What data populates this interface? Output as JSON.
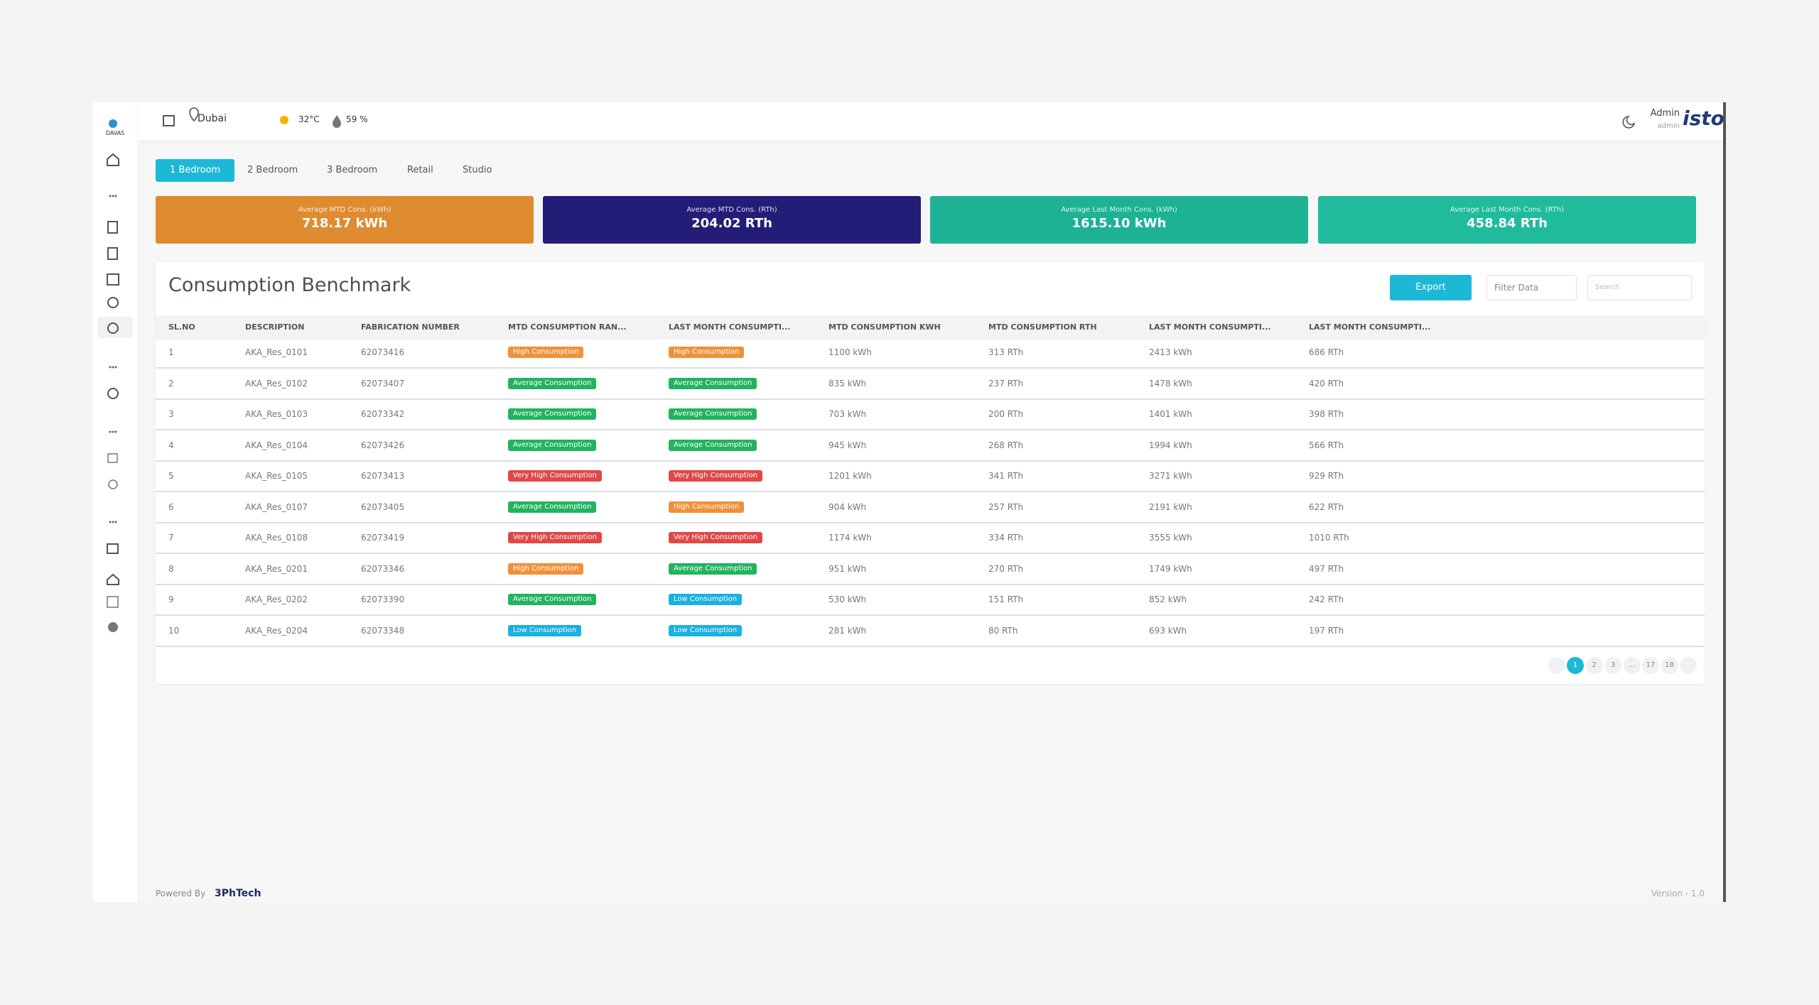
{
  "sidebar": {
    "logo_text": "DAVAS"
  },
  "header": {
    "location": "Dubai",
    "temperature": "32°C",
    "humidity": "59 %",
    "user_name": "Admin",
    "user_role": "admin",
    "brand": "isto"
  },
  "tabs": [
    "1 Bedroom",
    "2 Bedroom",
    "3 Bedroom",
    "Retail",
    "Studio"
  ],
  "cards": [
    {
      "label": "Average MTD Cons. (kWh)",
      "value": "718.17 kWh",
      "color": "#df8b2f"
    },
    {
      "label": "Average MTD Cons. (RTh)",
      "value": "204.02 RTh",
      "color": "#231d78"
    },
    {
      "label": "Average Last Month Cons. (kWh)",
      "value": "1615.10 kWh",
      "color": "#1db294"
    },
    {
      "label": "Average Last Month Cons. (RTh)",
      "value": "458.84 RTh",
      "color": "#20bb9c"
    }
  ],
  "table": {
    "title": "Consumption Benchmark",
    "export": "Export",
    "filter": "Filter Data",
    "search": "Search",
    "columns": [
      "SL.NO",
      "DESCRIPTION",
      "FABRICATION NUMBER",
      "MTD CONSUMPTION RAN...",
      "LAST MONTH CONSUMPTI...",
      "MTD CONSUMPTION KWH",
      "MTD CONSUMPTION RTH",
      "LAST MONTH CONSUMPTI...",
      "LAST MONTH CONSUMPTI..."
    ],
    "badge_colors": {
      "High Consumption": "#f0913a",
      "Average Consumption": "#22b35e",
      "Very High Consumption": "#e04848",
      "Low Consumption": "#1ab0e0"
    },
    "rows": [
      [
        "1",
        "AKA_Res_0101",
        "62073416",
        "High Consumption",
        "High Consumption",
        "1100 kWh",
        "313 RTh",
        "2413 kWh",
        "686 RTh"
      ],
      [
        "2",
        "AKA_Res_0102",
        "62073407",
        "Average Consumption",
        "Average Consumption",
        "835 kWh",
        "237 RTh",
        "1478 kWh",
        "420 RTh"
      ],
      [
        "3",
        "AKA_Res_0103",
        "62073342",
        "Average Consumption",
        "Average Consumption",
        "703 kWh",
        "200 RTh",
        "1401 kWh",
        "398 RTh"
      ],
      [
        "4",
        "AKA_Res_0104",
        "62073426",
        "Average Consumption",
        "Average Consumption",
        "945 kWh",
        "268 RTh",
        "1994 kWh",
        "566 RTh"
      ],
      [
        "5",
        "AKA_Res_0105",
        "62073413",
        "Very High Consumption",
        "Very High Consumption",
        "1201 kWh",
        "341 RTh",
        "3271 kWh",
        "929 RTh"
      ],
      [
        "6",
        "AKA_Res_0107",
        "62073405",
        "Average Consumption",
        "High Consumption",
        "904 kWh",
        "257 RTh",
        "2191 kWh",
        "622 RTh"
      ],
      [
        "7",
        "AKA_Res_0108",
        "62073419",
        "Very High Consumption",
        "Very High Consumption",
        "1174 kWh",
        "334 RTh",
        "3555 kWh",
        "1010 RTh"
      ],
      [
        "8",
        "AKA_Res_0201",
        "62073346",
        "High Consumption",
        "Average Consumption",
        "951 kWh",
        "270 RTh",
        "1749 kWh",
        "497 RTh"
      ],
      [
        "9",
        "AKA_Res_0202",
        "62073390",
        "Average Consumption",
        "Low Consumption",
        "530 kWh",
        "151 RTh",
        "852 kWh",
        "242 RTh"
      ],
      [
        "10",
        "AKA_Res_0204",
        "62073348",
        "Low Consumption",
        "Low Consumption",
        "281 kWh",
        "80 RTh",
        "693 kWh",
        "197 RTh"
      ]
    ]
  },
  "pagination": [
    "1",
    "2",
    "3",
    "...",
    "17",
    "18"
  ],
  "footer": {
    "powered_by": "Powered By",
    "company": "3PhTech",
    "version": "Version - 1.0"
  }
}
